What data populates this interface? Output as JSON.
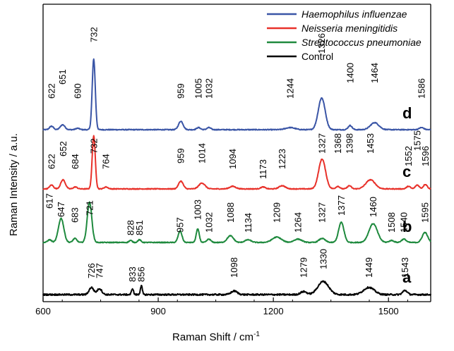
{
  "chart_data": {
    "type": "line",
    "xlabel": "Raman Shift / cm",
    "xlabel_sup": "-1",
    "ylabel": "Raman Intensity / a.u.",
    "xlim": [
      600,
      1610
    ],
    "xticks": [
      600,
      900,
      1200,
      1500
    ],
    "grid": false,
    "legend_position": "top-right",
    "series": [
      {
        "name": "Haemophilus influenzae",
        "trace_label": "d",
        "color": "#3a55a6",
        "italic": true,
        "baseline": 0.2,
        "peaks": [
          {
            "x": 622,
            "h": 0.05,
            "w": 5,
            "label": "622"
          },
          {
            "x": 651,
            "h": 0.07,
            "w": 6,
            "label": "651"
          },
          {
            "x": 690,
            "h": 0.02,
            "w": 5,
            "label": "690"
          },
          {
            "x": 732,
            "h": 1.0,
            "w": 4,
            "label": "732"
          },
          {
            "x": 959,
            "h": 0.12,
            "w": 6,
            "label": "959"
          },
          {
            "x": 1005,
            "h": 0.03,
            "w": 5,
            "label": "1005"
          },
          {
            "x": 1032,
            "h": 0.03,
            "w": 5,
            "label": "1032"
          },
          {
            "x": 1244,
            "h": 0.03,
            "w": 12,
            "label": "1244"
          },
          {
            "x": 1326,
            "h": 0.45,
            "w": 9,
            "label": "1326"
          },
          {
            "x": 1400,
            "h": 0.06,
            "w": 5,
            "label": "1400"
          },
          {
            "x": 1464,
            "h": 0.1,
            "w": 11,
            "label": "1464"
          },
          {
            "x": 1586,
            "h": 0.03,
            "w": 6,
            "label": "1586"
          }
        ]
      },
      {
        "name": "Neisseria meningitidis",
        "trace_label": "c",
        "color": "#e8312a",
        "italic": true,
        "baseline": 0.2,
        "peaks": [
          {
            "x": 622,
            "h": 0.06,
            "w": 5,
            "label": "622"
          },
          {
            "x": 652,
            "h": 0.14,
            "w": 6,
            "label": "652"
          },
          {
            "x": 684,
            "h": 0.03,
            "w": 5,
            "label": "684"
          },
          {
            "x": 732,
            "h": 0.82,
            "w": 4,
            "label": "732"
          },
          {
            "x": 764,
            "h": 0.03,
            "w": 5,
            "label": "764"
          },
          {
            "x": 959,
            "h": 0.12,
            "w": 6,
            "label": "959"
          },
          {
            "x": 1014,
            "h": 0.09,
            "w": 8,
            "label": "1014"
          },
          {
            "x": 1094,
            "h": 0.04,
            "w": 8,
            "label": "1094"
          },
          {
            "x": 1173,
            "h": 0.03,
            "w": 6,
            "label": "1173"
          },
          {
            "x": 1223,
            "h": 0.05,
            "w": 8,
            "label": "1223"
          },
          {
            "x": 1327,
            "h": 0.46,
            "w": 9,
            "label": "1327"
          },
          {
            "x": 1368,
            "h": 0.04,
            "w": 5,
            "label": "1368"
          },
          {
            "x": 1398,
            "h": 0.05,
            "w": 5,
            "label": "1398"
          },
          {
            "x": 1453,
            "h": 0.14,
            "w": 12,
            "label": "1453"
          },
          {
            "x": 1552,
            "h": 0.04,
            "w": 5,
            "label": "1552"
          },
          {
            "x": 1575,
            "h": 0.06,
            "w": 5,
            "label": "1575"
          },
          {
            "x": 1596,
            "h": 0.07,
            "w": 5,
            "label": "1596"
          }
        ]
      },
      {
        "name": "Streptococcus pneumoniae",
        "trace_label": "b",
        "color": "#1f8a3e",
        "italic": true,
        "baseline": 0.2,
        "peaks": [
          {
            "x": 617,
            "h": 0.04,
            "w": 5,
            "label": "617"
          },
          {
            "x": 647,
            "h": 0.36,
            "w": 7,
            "label": "647"
          },
          {
            "x": 683,
            "h": 0.06,
            "w": 5,
            "label": "683"
          },
          {
            "x": 721,
            "h": 0.6,
            "w": 6,
            "label": "721"
          },
          {
            "x": 828,
            "h": 0.03,
            "w": 4,
            "label": "828"
          },
          {
            "x": 851,
            "h": 0.04,
            "w": 4,
            "label": "851"
          },
          {
            "x": 957,
            "h": 0.17,
            "w": 5,
            "label": "957"
          },
          {
            "x": 1003,
            "h": 0.2,
            "w": 4,
            "label": "1003"
          },
          {
            "x": 1032,
            "h": 0.05,
            "w": 5,
            "label": "1032"
          },
          {
            "x": 1088,
            "h": 0.1,
            "w": 8,
            "label": "1088"
          },
          {
            "x": 1134,
            "h": 0.04,
            "w": 8,
            "label": "1134"
          },
          {
            "x": 1209,
            "h": 0.08,
            "w": 12,
            "label": "1209"
          },
          {
            "x": 1264,
            "h": 0.05,
            "w": 10,
            "label": "1264"
          },
          {
            "x": 1327,
            "h": 0.06,
            "w": 8,
            "label": "1327"
          },
          {
            "x": 1377,
            "h": 0.3,
            "w": 7,
            "label": "1377"
          },
          {
            "x": 1460,
            "h": 0.28,
            "w": 11,
            "label": "1460"
          },
          {
            "x": 1508,
            "h": 0.03,
            "w": 6,
            "label": "1508"
          },
          {
            "x": 1540,
            "h": 0.05,
            "w": 6,
            "label": "1540"
          },
          {
            "x": 1595,
            "h": 0.15,
            "w": 7,
            "label": "1595"
          }
        ]
      },
      {
        "name": "Control",
        "trace_label": "a",
        "color": "#000000",
        "italic": false,
        "baseline": 0.2,
        "peaks": [
          {
            "x": 726,
            "h": 0.12,
            "w": 6,
            "label": "726"
          },
          {
            "x": 747,
            "h": 0.1,
            "w": 6,
            "label": "747"
          },
          {
            "x": 833,
            "h": 0.1,
            "w": 2.5,
            "label": "833"
          },
          {
            "x": 856,
            "h": 0.15,
            "w": 2.5,
            "label": "856"
          },
          {
            "x": 1098,
            "h": 0.06,
            "w": 8,
            "label": "1098"
          },
          {
            "x": 1279,
            "h": 0.05,
            "w": 8,
            "label": "1279"
          },
          {
            "x": 1330,
            "h": 0.22,
            "w": 14,
            "label": "1330"
          },
          {
            "x": 1449,
            "h": 0.12,
            "w": 14,
            "label": "1449"
          },
          {
            "x": 1543,
            "h": 0.07,
            "w": 6,
            "label": "1543"
          }
        ]
      }
    ]
  }
}
